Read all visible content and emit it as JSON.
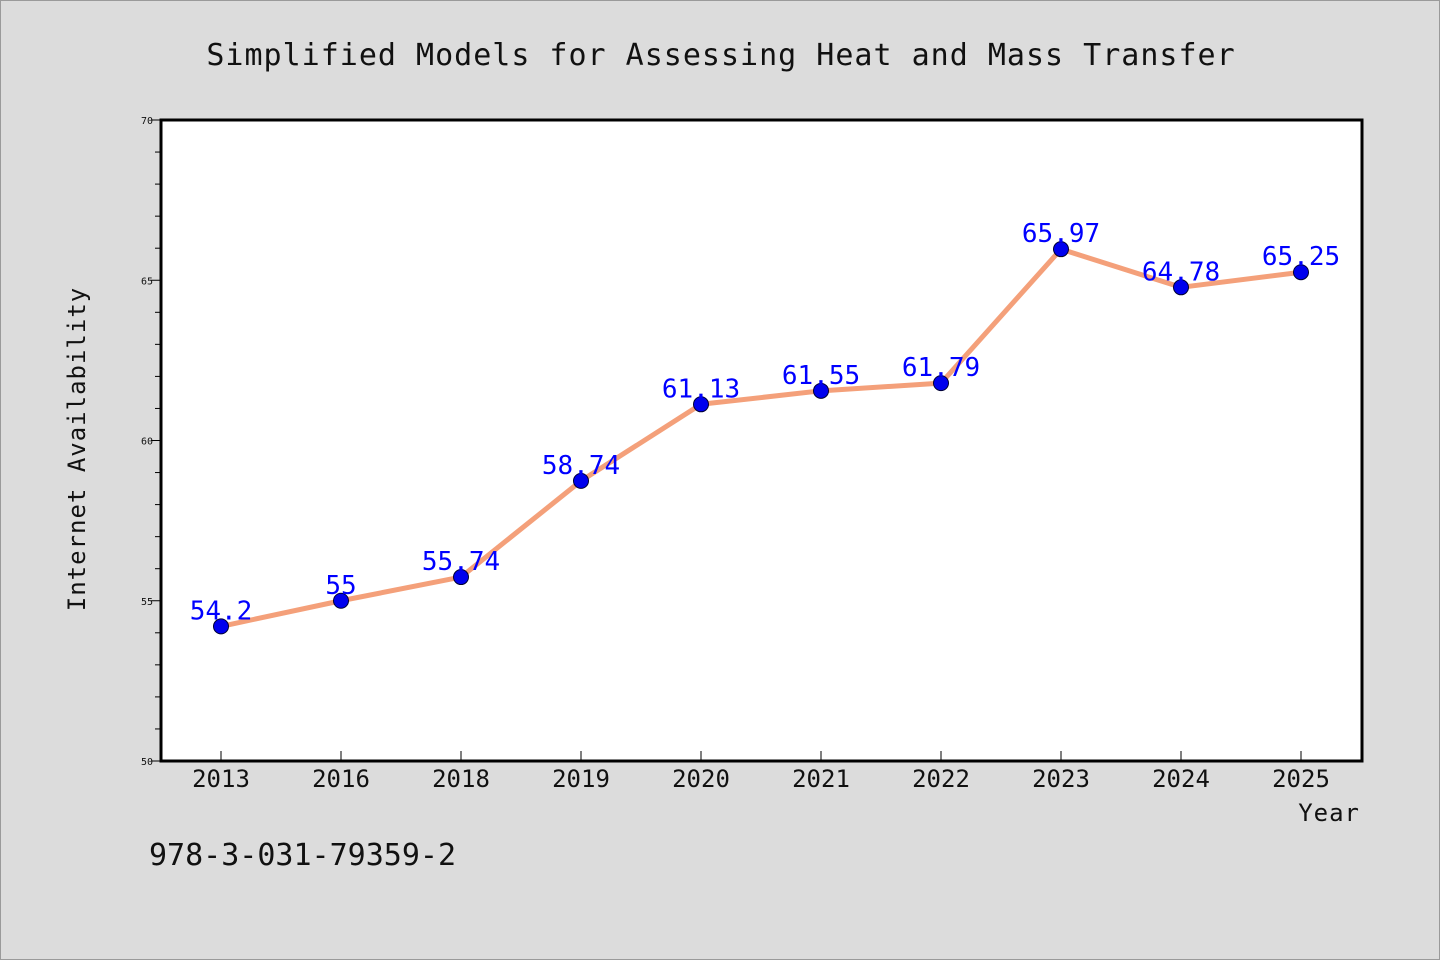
{
  "chart_data": {
    "type": "line",
    "title": "Simplified Models for Assessing Heat and Mass Transfer",
    "xlabel": "Year",
    "ylabel": "Internet Availability",
    "categories": [
      "2013",
      "2016",
      "2018",
      "2019",
      "2020",
      "2021",
      "2022",
      "2023",
      "2024",
      "2025"
    ],
    "series": [
      {
        "values": [
          54.2,
          55,
          55.74,
          58.74,
          61.13,
          61.55,
          61.79,
          65.97,
          64.78,
          65.25
        ]
      }
    ],
    "data_labels": [
      "54.2",
      "55",
      "55.74",
      "58.74",
      "61.13",
      "61.55",
      "61.79",
      "65.97",
      "64.78",
      "65.25"
    ],
    "ylim": [
      50,
      70
    ],
    "yticks": [
      "50",
      "55",
      "60",
      "65",
      "70"
    ],
    "grid": false,
    "legend": "none",
    "colors": {
      "line": "#f4a07a",
      "marker": "#0000ee",
      "label": "#0000ff"
    }
  },
  "footer": {
    "isbn": "978-3-031-79359-2"
  }
}
